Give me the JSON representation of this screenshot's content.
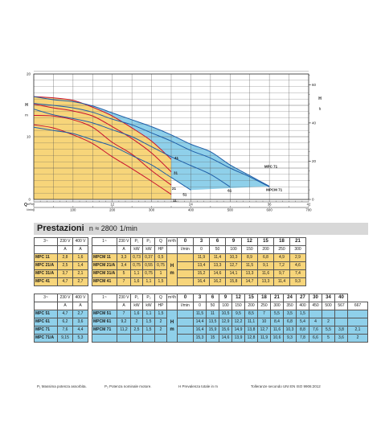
{
  "chart_data": {
    "type": "line",
    "x_bottom_lmin": {
      "ticks": [
        0,
        50,
        100,
        150,
        200,
        250,
        300,
        350,
        400,
        450,
        500,
        550,
        600,
        650,
        700
      ],
      "labels": [
        "0",
        "",
        "100",
        "",
        "200",
        "",
        "300",
        "",
        "400",
        "",
        "500",
        "",
        "600",
        "",
        "700"
      ],
      "unit1": "l/min",
      "unit2": "Q"
    },
    "x_bottom_m3h": {
      "ticks": [
        0,
        6,
        12,
        18,
        24,
        30,
        36,
        42
      ],
      "labels": [
        "0",
        "",
        "12",
        "",
        "24",
        "",
        "36",
        "42"
      ],
      "unit1": "m³/h",
      "unit2": "Q"
    },
    "x_top_gpm": {
      "ticks": [
        0,
        20,
        40,
        60,
        80,
        100,
        120,
        140
      ],
      "labels": [
        "0",
        "20",
        "40",
        "60",
        "80",
        "100",
        "120",
        "140"
      ],
      "unit": "Imp. g.p.m."
    },
    "y_left_m": {
      "ticks": [
        0,
        5,
        10,
        15,
        20
      ],
      "labels": [
        "0",
        "",
        "10",
        "",
        "20"
      ],
      "label1": "H",
      "label2": "m"
    },
    "y_left_ft": {
      "ticks": [
        0,
        20,
        40,
        60
      ],
      "labels": [
        "0",
        "20",
        "40",
        "60"
      ],
      "label1": "H",
      "label2": "ft"
    },
    "xlim_lmin": [
      0,
      700
    ],
    "ylim_m": [
      0,
      20
    ],
    "grid": true,
    "curve_labels": {
      "MPC 11": "11",
      "MPC 21": "21",
      "MPC 31": "31",
      "MPC 41": "41",
      "MPC 51": "51",
      "MPC 61": "61",
      "MPC 71": "MPC 71",
      "MPCM 71": "MPCM 71"
    },
    "series": [
      {
        "key": "MPC 11",
        "color": "#c8102e",
        "x": [
          0,
          50,
          100,
          150,
          200,
          250,
          300,
          350
        ],
        "y": [
          11.9,
          11.4,
          10.3,
          8.9,
          6.8,
          4.9,
          2.9,
          0.8
        ]
      },
      {
        "key": "MPC 21",
        "color": "#c8102e",
        "x": [
          0,
          50,
          100,
          150,
          200,
          250,
          300,
          350
        ],
        "y": [
          13.4,
          13.3,
          12.7,
          11.5,
          9.1,
          7.2,
          4.6,
          2.3
        ]
      },
      {
        "key": "MPC 31",
        "color": "#c8102e",
        "x": [
          0,
          50,
          100,
          150,
          200,
          250,
          300,
          350
        ],
        "y": [
          15.2,
          14.6,
          14.1,
          13.3,
          11.6,
          9.7,
          7.4,
          4.4
        ]
      },
      {
        "key": "MPC 41",
        "color": "#c8102e",
        "x": [
          0,
          50,
          100,
          150,
          200,
          250,
          300,
          350
        ],
        "y": [
          16.4,
          16.2,
          15.8,
          14.7,
          13.3,
          11.4,
          9.3,
          6.4
        ]
      },
      {
        "key": "MPC 51",
        "color": "#1f5fa8",
        "x": [
          0,
          50,
          100,
          150,
          200,
          250,
          300,
          350,
          400,
          450,
          500,
          550,
          600
        ],
        "y": [
          11.5,
          11,
          10.5,
          9.5,
          8.5,
          7,
          5.5,
          3.5,
          1.5,
          0,
          0,
          0,
          0
        ]
      },
      {
        "key": "MPC 61",
        "color": "#1f5fa8",
        "x": [
          0,
          50,
          100,
          150,
          200,
          250,
          300,
          350,
          400,
          450,
          500
        ],
        "y": [
          14.4,
          13.5,
          12.9,
          12.2,
          11.1,
          10,
          8.4,
          6.8,
          5.4,
          4,
          2
        ]
      },
      {
        "key": "MPC 71",
        "color": "#1f5fa8",
        "x": [
          0,
          50,
          100,
          150,
          200,
          250,
          300,
          350,
          400,
          450,
          500,
          550,
          600
        ],
        "y": [
          16.4,
          15.9,
          15.6,
          14.9,
          13.8,
          12.7,
          11.6,
          10.3,
          8.8,
          7.6,
          5.5,
          3.8,
          2.1
        ]
      },
      {
        "key": "MPCM 71",
        "color": "#1f5fa8",
        "x": [
          0,
          50,
          100,
          150,
          200,
          250,
          300,
          350,
          400,
          450,
          500,
          550,
          600
        ],
        "y": [
          15.3,
          15,
          14.6,
          13.9,
          12.8,
          11.9,
          10.6,
          9.3,
          7.8,
          6.6,
          5,
          3.6,
          2
        ]
      }
    ]
  },
  "title": {
    "main": "Prestazioni",
    "sub": "n ≈ 2800",
    "unit": "1/min"
  },
  "table1": {
    "head1": [
      "3~",
      "230 V",
      "400 V",
      "1~",
      "230 V",
      "P₁",
      "P₂",
      "Q",
      "m³/h",
      "0",
      "3",
      "6",
      "9",
      "12",
      "15",
      "18",
      "21"
    ],
    "head2": [
      "",
      "A",
      "A",
      "",
      "A",
      "kW",
      "kW",
      "HP",
      "",
      "l/min",
      "0",
      "50",
      "100",
      "150",
      "200",
      "250",
      "300",
      "350"
    ],
    "hm": [
      "H",
      "m"
    ],
    "rows": [
      {
        "m3": "MPC 11",
        "a230": "2,8",
        "a400": "1,6",
        "m1": "MPCM 11",
        "a1": "3,3",
        "p1": "0,73",
        "p2kw": "0,37",
        "p2hp": "0,5",
        "h": [
          "11,9",
          "11,4",
          "10,3",
          "8,9",
          "6,8",
          "4,9",
          "2,9",
          "0,8"
        ]
      },
      {
        "m3": "MPC 21/A",
        "a230": "2,5",
        "a400": "1,4",
        "m1": "MPCM 21/A",
        "a1": "3,4",
        "p1": "0,75",
        "p2kw": "0,55",
        "p2hp": "0,75",
        "h": [
          "13,4",
          "13,3",
          "12,7",
          "11,5",
          "9,1",
          "7,2",
          "4,6",
          "2,3"
        ]
      },
      {
        "m3": "MPC 31/A",
        "a230": "3,7",
        "a400": "2,1",
        "m1": "MPCM 31/A",
        "a1": "5",
        "p1": "1,1",
        "p2kw": "0,75",
        "p2hp": "1",
        "h": [
          "15,2",
          "14,6",
          "14,1",
          "13,3",
          "11,6",
          "9,7",
          "7,4",
          "4,4"
        ]
      },
      {
        "m3": "MPC 41",
        "a230": "4,7",
        "a400": "2,7",
        "m1": "MPCM 41",
        "a1": "7",
        "p1": "1,6",
        "p2kw": "1,1",
        "p2hp": "1,5",
        "h": [
          "16,4",
          "16,2",
          "15,8",
          "14,7",
          "13,3",
          "11,4",
          "9,3",
          "6,4"
        ]
      }
    ]
  },
  "table2": {
    "head1": [
      "3~",
      "230 V",
      "400 V",
      "1~",
      "230 V",
      "P₁",
      "P₂",
      "Q",
      "m³/h",
      "0",
      "3",
      "6",
      "9",
      "12",
      "15",
      "18",
      "21",
      "24",
      "27",
      "30",
      "34",
      "40"
    ],
    "head2": [
      "",
      "A",
      "A",
      "",
      "A",
      "kW",
      "kW",
      "HP",
      "",
      "l/min",
      "0",
      "50",
      "100",
      "150",
      "200",
      "250",
      "300",
      "350",
      "400",
      "450",
      "500",
      "567",
      "667"
    ],
    "hm": [
      "H",
      "m"
    ],
    "rows": [
      {
        "m3": "MPC 51",
        "a230": "4,7",
        "a400": "2,7",
        "m1": "MPCM 51",
        "a1": "7",
        "p1": "1,6",
        "p2kw": "1,1",
        "p2hp": "1,5",
        "h": [
          "11,5",
          "11",
          "10,5",
          "9,5",
          "8,5",
          "7",
          "5,5",
          "3,5",
          "1,5",
          "",
          "",
          "",
          ""
        ]
      },
      {
        "m3": "MPC 61",
        "a230": "6,2",
        "a400": "3,6",
        "m1": "MPCM 61",
        "a1": "9,2",
        "p1": "2",
        "p2kw": "1,5",
        "p2hp": "2",
        "h": [
          "14,4",
          "13,5",
          "12,9",
          "12,2",
          "11,1",
          "10",
          "8,4",
          "6,8",
          "5,4",
          "4",
          "2",
          "",
          ""
        ]
      },
      {
        "m3": "MPC 71",
        "a230": "7,6",
        "a400": "4,4",
        "m1": "MPCM 71",
        "a1": "11,2",
        "p1": "2,5",
        "p2kw": "1,5",
        "p2hp": "2",
        "h": [
          "16,4",
          "15,9",
          "15,6",
          "14,9",
          "13,8",
          "12,7",
          "11,6",
          "10,3",
          "8,8",
          "7,6",
          "5,5",
          "3,8",
          "2,1"
        ]
      },
      {
        "m3": "MPC 71/A",
        "a230": "9,15",
        "a400": "5,3",
        "m1": "",
        "a1": "",
        "p1": "",
        "p2kw": "",
        "p2hp": "",
        "h": [
          "15,3",
          "15",
          "14,6",
          "13,9",
          "12,8",
          "11,9",
          "10,6",
          "9,3",
          "7,8",
          "6,6",
          "5",
          "3,6",
          "2"
        ]
      }
    ]
  },
  "footer": {
    "p1": "P₁ Massima potenza assorbita.",
    "p2": "P₂ Potenza nominale motore.",
    "h": "H Prevalenza totale in m",
    "tol": "Tolleranze secondo UNI EN ISO 9906:2012"
  },
  "colors": {
    "yellow_area": "#f7d57a",
    "blue_area": "#8fd0ea",
    "blue_dark": "#4aa8d8",
    "red": "#c8102e",
    "grid": "#555555"
  }
}
